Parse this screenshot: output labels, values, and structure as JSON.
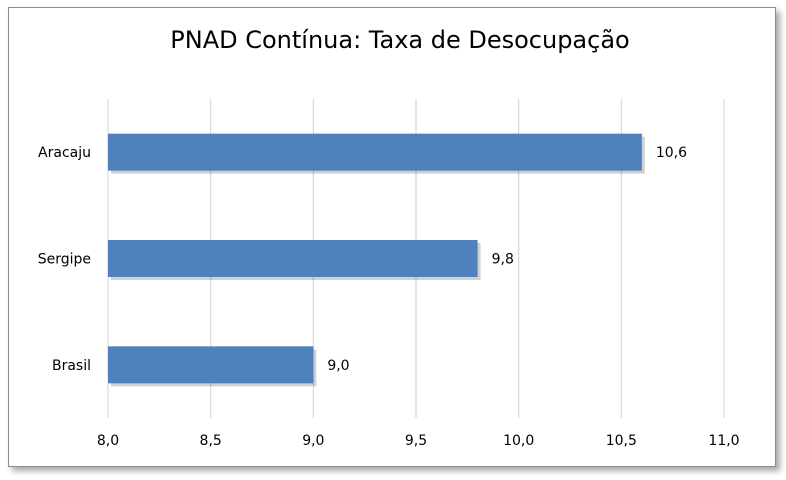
{
  "chart_data": {
    "type": "bar",
    "orientation": "horizontal",
    "title": "PNAD Contínua: Taxa de Desocupação",
    "categories": [
      "Aracaju",
      "Sergipe",
      "Brasil"
    ],
    "values": [
      10.6,
      9.8,
      9.0
    ],
    "value_labels": [
      "10,6",
      "9,8",
      "9,0"
    ],
    "xlim": [
      8.0,
      11.0
    ],
    "x_ticks": [
      8.0,
      8.5,
      9.0,
      9.5,
      10.0,
      10.5,
      11.0
    ],
    "x_tick_labels": [
      "8,0",
      "8,5",
      "9,0",
      "9,5",
      "10,0",
      "10,5",
      "11,0"
    ],
    "grid": true,
    "legend": "none",
    "bar_color": "#4F81BD"
  }
}
